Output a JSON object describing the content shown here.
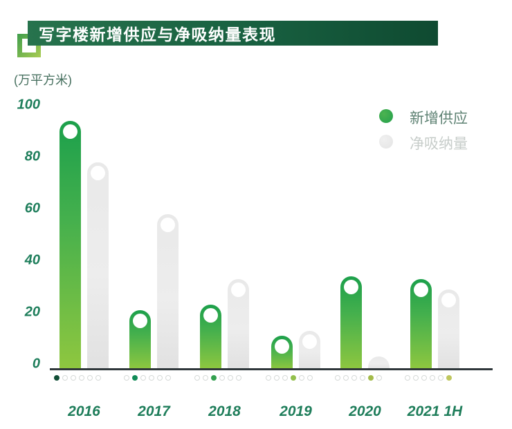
{
  "chart_data": {
    "type": "bar",
    "title": "写字楼新增供应与净吸纳量表现",
    "ylabel": "(万平方米)",
    "xlabel": "",
    "categories": [
      "2016",
      "2017",
      "2018",
      "2019",
      "2020",
      "2021 1H"
    ],
    "series": [
      {
        "name": "新增供应",
        "values": [
          96,
          23,
          25,
          13,
          36,
          35
        ]
      },
      {
        "name": "净吸纳量",
        "values": [
          80,
          60,
          35,
          15,
          5,
          31
        ]
      }
    ],
    "ylim": [
      0,
      100
    ],
    "yticks": [
      100,
      80,
      60,
      40,
      20,
      0
    ],
    "grid": false,
    "legend_position": "top-right"
  },
  "timeline_dots": {
    "dots_per_group": 6,
    "active_index_per_group": [
      0,
      1,
      2,
      3,
      4,
      5
    ],
    "active_colors": [
      "#114e36",
      "#118b57",
      "#33a04f",
      "#93c04c",
      "#a3bb4a",
      "#bfc75e"
    ]
  },
  "colors": {
    "title_bar_start": "#27734d",
    "title_bar_end": "#0f4a31",
    "title_text": "#ffffff",
    "accent_square_start": "#3f9d4c",
    "accent_square_end": "#a9cc52",
    "supply_green_top": "#1ca04b",
    "supply_green_bottom": "#8fc73f",
    "absorption_gray": "#e9e9e9",
    "axis_text_green": "#1e7e5b",
    "axis_line": "#2f373a",
    "legend_supply_text": "#5d8172",
    "legend_absorption_text": "#c7cdca"
  }
}
